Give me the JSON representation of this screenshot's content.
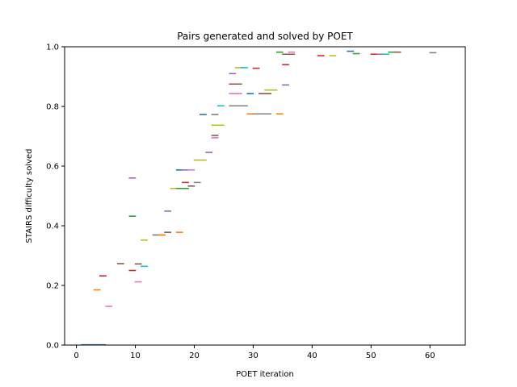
{
  "chart_data": {
    "type": "scatter",
    "title": "Pairs generated and solved by POET",
    "xlabel": "POET iteration",
    "ylabel": "STAIRS difficulty solved",
    "xlim": [
      -2,
      66
    ],
    "ylim": [
      0,
      1.0
    ],
    "xticks": [
      "0",
      "10",
      "20",
      "30",
      "40",
      "50",
      "60"
    ],
    "xtick_values": [
      0,
      10,
      20,
      30,
      40,
      50,
      60
    ],
    "yticks": [
      "0.0",
      "0.2",
      "0.4",
      "0.6",
      "0.8",
      "1.0"
    ],
    "ytick_values": [
      0,
      0.2,
      0.4,
      0.6,
      0.8,
      1.0
    ],
    "grid": false,
    "legend": "none",
    "segments": [
      {
        "x1": 0.8,
        "x2": 5.0,
        "y": 0.001,
        "color": "#1f77b4"
      },
      {
        "x1": 2.9,
        "x2": 4.1,
        "y": 0.185,
        "color": "#ff7f0e"
      },
      {
        "x1": 3.9,
        "x2": 5.1,
        "y": 0.232,
        "color": "#d62728"
      },
      {
        "x1": 4.9,
        "x2": 6.1,
        "y": 0.13,
        "color": "#e377c2"
      },
      {
        "x1": 6.9,
        "x2": 8.1,
        "y": 0.273,
        "color": "#8c564b"
      },
      {
        "x1": 8.9,
        "x2": 10.1,
        "y": 0.56,
        "color": "#9467bd"
      },
      {
        "x1": 8.9,
        "x2": 10.1,
        "y": 0.432,
        "color": "#2ca02c"
      },
      {
        "x1": 8.9,
        "x2": 10.1,
        "y": 0.25,
        "color": "#d62728"
      },
      {
        "x1": 9.9,
        "x2": 11.1,
        "y": 0.272,
        "color": "#8c564b"
      },
      {
        "x1": 9.9,
        "x2": 11.1,
        "y": 0.212,
        "color": "#e377c2"
      },
      {
        "x1": 10.9,
        "x2": 12.1,
        "y": 0.264,
        "color": "#17becf"
      },
      {
        "x1": 10.9,
        "x2": 12.1,
        "y": 0.352,
        "color": "#bcbd22"
      },
      {
        "x1": 12.9,
        "x2": 15.1,
        "y": 0.369,
        "color": "#7f7f7f"
      },
      {
        "x1": 13.9,
        "x2": 15.1,
        "y": 0.369,
        "color": "#ff7f0e"
      },
      {
        "x1": 14.9,
        "x2": 16.1,
        "y": 0.449,
        "color": "#9467bd"
      },
      {
        "x1": 14.9,
        "x2": 16.1,
        "y": 0.378,
        "color": "#8c564b"
      },
      {
        "x1": 15.9,
        "x2": 18.1,
        "y": 0.525,
        "color": "#bcbd22"
      },
      {
        "x1": 16.9,
        "x2": 19.1,
        "y": 0.525,
        "color": "#2ca02c"
      },
      {
        "x1": 16.9,
        "x2": 18.1,
        "y": 0.587,
        "color": "#1f77b4"
      },
      {
        "x1": 16.9,
        "x2": 18.1,
        "y": 0.378,
        "color": "#ff7f0e"
      },
      {
        "x1": 17.9,
        "x2": 19.1,
        "y": 0.587,
        "color": "#9467bd"
      },
      {
        "x1": 17.9,
        "x2": 19.1,
        "y": 0.545,
        "color": "#d62728"
      },
      {
        "x1": 18.9,
        "x2": 20.1,
        "y": 0.587,
        "color": "#e377c2"
      },
      {
        "x1": 18.9,
        "x2": 20.1,
        "y": 0.533,
        "color": "#8c564b"
      },
      {
        "x1": 19.9,
        "x2": 21.1,
        "y": 0.545,
        "color": "#7f7f7f"
      },
      {
        "x1": 19.9,
        "x2": 22.1,
        "y": 0.62,
        "color": "#bcbd22"
      },
      {
        "x1": 20.9,
        "x2": 22.1,
        "y": 0.773,
        "color": "#1f77b4"
      },
      {
        "x1": 21.9,
        "x2": 23.1,
        "y": 0.646,
        "color": "#9467bd"
      },
      {
        "x1": 22.9,
        "x2": 24.1,
        "y": 0.773,
        "color": "#7f7f7f"
      },
      {
        "x1": 22.9,
        "x2": 25.1,
        "y": 0.737,
        "color": "#bcbd22"
      },
      {
        "x1": 22.9,
        "x2": 24.1,
        "y": 0.703,
        "color": "#8c564b"
      },
      {
        "x1": 22.9,
        "x2": 24.1,
        "y": 0.695,
        "color": "#e377c2"
      },
      {
        "x1": 23.9,
        "x2": 25.1,
        "y": 0.802,
        "color": "#17becf"
      },
      {
        "x1": 25.9,
        "x2": 27.1,
        "y": 0.91,
        "color": "#9467bd"
      },
      {
        "x1": 25.9,
        "x2": 28.1,
        "y": 0.875,
        "color": "#8c564b"
      },
      {
        "x1": 25.9,
        "x2": 28.1,
        "y": 0.843,
        "color": "#e377c2"
      },
      {
        "x1": 25.9,
        "x2": 29.1,
        "y": 0.802,
        "color": "#7f7f7f"
      },
      {
        "x1": 26.9,
        "x2": 28.1,
        "y": 0.93,
        "color": "#bcbd22"
      },
      {
        "x1": 27.9,
        "x2": 29.1,
        "y": 0.93,
        "color": "#17becf"
      },
      {
        "x1": 28.9,
        "x2": 30.1,
        "y": 0.843,
        "color": "#1f77b4"
      },
      {
        "x1": 28.9,
        "x2": 30.1,
        "y": 0.775,
        "color": "#ff7f0e"
      },
      {
        "x1": 29.9,
        "x2": 31.1,
        "y": 0.928,
        "color": "#d62728"
      },
      {
        "x1": 29.9,
        "x2": 33.1,
        "y": 0.775,
        "color": "#7f7f7f"
      },
      {
        "x1": 30.9,
        "x2": 33.1,
        "y": 0.843,
        "color": "#8c564b"
      },
      {
        "x1": 31.9,
        "x2": 34.1,
        "y": 0.855,
        "color": "#bcbd22"
      },
      {
        "x1": 33.9,
        "x2": 35.1,
        "y": 0.775,
        "color": "#ff7f0e"
      },
      {
        "x1": 33.9,
        "x2": 35.1,
        "y": 0.982,
        "color": "#2ca02c"
      },
      {
        "x1": 34.9,
        "x2": 36.1,
        "y": 0.94,
        "color": "#d62728"
      },
      {
        "x1": 34.9,
        "x2": 36.1,
        "y": 0.872,
        "color": "#9467bd"
      },
      {
        "x1": 34.9,
        "x2": 37.1,
        "y": 0.975,
        "color": "#8c564b"
      },
      {
        "x1": 35.9,
        "x2": 37.1,
        "y": 0.982,
        "color": "#e377c2"
      },
      {
        "x1": 40.9,
        "x2": 42.1,
        "y": 0.97,
        "color": "#d62728"
      },
      {
        "x1": 42.9,
        "x2": 44.1,
        "y": 0.97,
        "color": "#bcbd22"
      },
      {
        "x1": 45.9,
        "x2": 47.1,
        "y": 0.985,
        "color": "#1f77b4"
      },
      {
        "x1": 46.9,
        "x2": 48.1,
        "y": 0.977,
        "color": "#2ca02c"
      },
      {
        "x1": 49.9,
        "x2": 51.1,
        "y": 0.975,
        "color": "#d62728"
      },
      {
        "x1": 50.9,
        "x2": 52.1,
        "y": 0.975,
        "color": "#9467bd"
      },
      {
        "x1": 51.9,
        "x2": 53.1,
        "y": 0.975,
        "color": "#17becf"
      },
      {
        "x1": 52.9,
        "x2": 54.1,
        "y": 0.982,
        "color": "#2ca02c"
      },
      {
        "x1": 53.9,
        "x2": 55.1,
        "y": 0.982,
        "color": "#8c564b"
      },
      {
        "x1": 59.9,
        "x2": 61.1,
        "y": 0.98,
        "color": "#7f7f7f"
      }
    ]
  }
}
